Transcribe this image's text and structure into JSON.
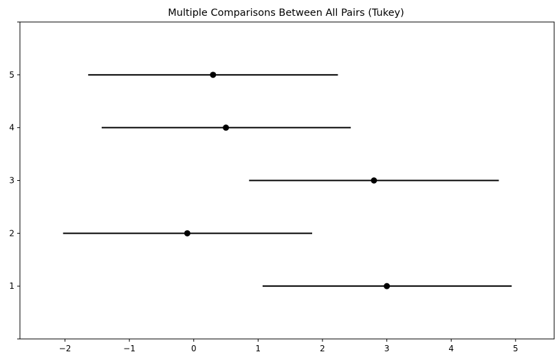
{
  "chart_data": {
    "type": "scatter",
    "title": "Multiple Comparisons Between All Pairs (Tukey)",
    "xlabel": "",
    "ylabel": "",
    "xlim": [
      -2.7,
      5.6
    ],
    "ylim": [
      0,
      6
    ],
    "xticks": [
      -2,
      -1,
      0,
      1,
      2,
      3,
      4,
      5
    ],
    "xtick_labels": [
      "−2",
      "−1",
      "0",
      "1",
      "2",
      "3",
      "4",
      "5"
    ],
    "yticks": [
      0,
      1,
      2,
      3,
      4,
      5,
      6
    ],
    "ytick_labels": [
      "",
      "1",
      "2",
      "3",
      "4",
      "5",
      ""
    ],
    "grid": false,
    "legend": "none",
    "marker_color": "#000000",
    "groups": [
      {
        "y": 1,
        "mean": 3.0,
        "lower": 1.07,
        "upper": 4.94
      },
      {
        "y": 2,
        "mean": -0.1,
        "lower": -2.03,
        "upper": 1.84
      },
      {
        "y": 3,
        "mean": 2.8,
        "lower": 0.86,
        "upper": 4.74
      },
      {
        "y": 4,
        "mean": 0.5,
        "lower": -1.43,
        "upper": 2.44
      },
      {
        "y": 5,
        "mean": 0.3,
        "lower": -1.64,
        "upper": 2.24
      }
    ]
  }
}
